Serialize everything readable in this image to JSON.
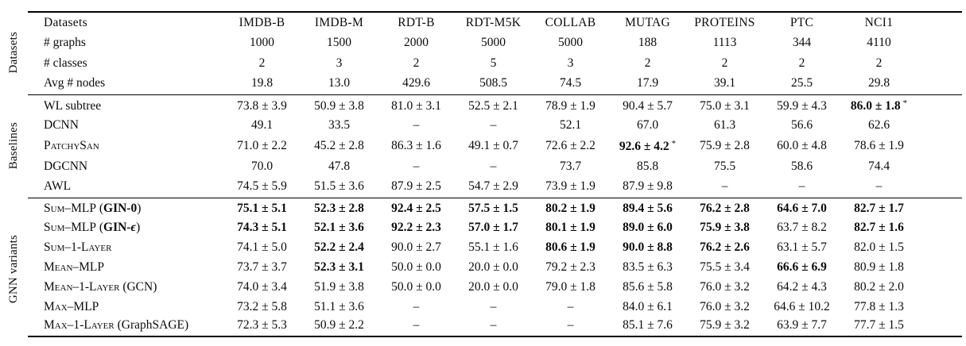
{
  "table": {
    "columns": [
      "Datasets",
      "IMDB-B",
      "IMDB-M",
      "RDT-B",
      "RDT-M5K",
      "COLLAB",
      "MUTAG",
      "PROTEINS",
      "PTC",
      "NCI1"
    ],
    "sections": [
      {
        "group_label": "Datasets",
        "rows": [
          {
            "label": [
              {
                "t": "# graphs"
              }
            ],
            "cells": [
              "1000",
              "1500",
              "2000",
              "5000",
              "5000",
              "188",
              "1113",
              "344",
              "4110"
            ]
          },
          {
            "label": [
              {
                "t": "# classes"
              }
            ],
            "cells": [
              "2",
              "3",
              "2",
              "5",
              "3",
              "2",
              "2",
              "2",
              "2"
            ]
          },
          {
            "label": [
              {
                "t": "Avg # nodes"
              }
            ],
            "cells": [
              "19.8",
              "13.0",
              "429.6",
              "508.5",
              "74.5",
              "17.9",
              "39.1",
              "25.5",
              "29.8"
            ]
          }
        ]
      },
      {
        "group_label": "Baselines",
        "rows": [
          {
            "label": [
              {
                "t": "WL subtree"
              }
            ],
            "cells": [
              "73.8 ± 3.9",
              "50.9 ± 3.8",
              "81.0 ± 3.1",
              "52.5 ± 2.1",
              "78.9 ± 1.9",
              "90.4 ± 5.7",
              "75.0 ± 3.1",
              "59.9 ± 4.3",
              {
                "t": "86.0 ± 1.8",
                "b": true,
                "star": "*"
              }
            ]
          },
          {
            "label": [
              {
                "t": "DCNN"
              }
            ],
            "cells": [
              "49.1",
              "33.5",
              "–",
              "–",
              "52.1",
              "67.0",
              "61.3",
              "56.6",
              "62.6"
            ]
          },
          {
            "label": [
              {
                "t": "PatchySan",
                "sc": true
              }
            ],
            "cells": [
              "71.0 ± 2.2",
              "45.2 ± 2.8",
              "86.3 ± 1.6",
              "49.1 ± 0.7",
              "72.6 ± 2.2",
              {
                "t": "92.6 ± 4.2",
                "b": true,
                "star": "*"
              },
              "75.9 ± 2.8",
              "60.0 ± 4.8",
              "78.6 ± 1.9"
            ]
          },
          {
            "label": [
              {
                "t": "DGCNN"
              }
            ],
            "cells": [
              "70.0",
              "47.8",
              "–",
              "–",
              "73.7",
              "85.8",
              "75.5",
              "58.6",
              "74.4"
            ]
          },
          {
            "label": [
              {
                "t": "AWL"
              }
            ],
            "cells": [
              "74.5 ± 5.9",
              "51.5 ± 3.6",
              "87.9 ± 2.5",
              "54.7 ± 2.9",
              "73.9 ± 1.9",
              "87.9 ± 9.8",
              "–",
              "–",
              "–"
            ]
          }
        ]
      },
      {
        "group_label": "GNN variants",
        "rows": [
          {
            "label": [
              {
                "t": "Sum–MLP",
                "sc": true
              },
              {
                "t": " ("
              },
              {
                "t": "GIN-0",
                "b": true
              },
              {
                "t": ")"
              }
            ],
            "cells": [
              {
                "t": "75.1 ± 5.1",
                "b": true
              },
              {
                "t": "52.3 ± 2.8",
                "b": true
              },
              {
                "t": "92.4 ± 2.5",
                "b": true
              },
              {
                "t": "57.5 ± 1.5",
                "b": true
              },
              {
                "t": "80.2 ± 1.9",
                "b": true
              },
              {
                "t": "89.4 ± 5.6",
                "b": true
              },
              {
                "t": "76.2 ± 2.8",
                "b": true
              },
              {
                "t": "64.6 ± 7.0",
                "b": true
              },
              {
                "t": "82.7 ± 1.7",
                "b": true
              }
            ]
          },
          {
            "label": [
              {
                "t": "Sum–MLP",
                "sc": true
              },
              {
                "t": " ("
              },
              {
                "t": "GIN-",
                "b": true
              },
              {
                "t": "ϵ",
                "b": true,
                "i": true
              },
              {
                "t": ")"
              }
            ],
            "cells": [
              {
                "t": "74.3 ± 5.1",
                "b": true
              },
              {
                "t": "52.1 ± 3.6",
                "b": true
              },
              {
                "t": "92.2 ± 2.3",
                "b": true
              },
              {
                "t": "57.0 ± 1.7",
                "b": true
              },
              {
                "t": "80.1 ± 1.9",
                "b": true
              },
              {
                "t": "89.0 ± 6.0",
                "b": true
              },
              {
                "t": "75.9 ± 3.8",
                "b": true
              },
              "63.7 ± 8.2",
              {
                "t": "82.7 ± 1.6",
                "b": true
              }
            ]
          },
          {
            "label": [
              {
                "t": "Sum–1-Layer",
                "sc": true
              }
            ],
            "cells": [
              "74.1 ± 5.0",
              {
                "t": "52.2 ± 2.4",
                "b": true
              },
              "90.0 ± 2.7",
              "55.1 ± 1.6",
              {
                "t": "80.6 ± 1.9",
                "b": true
              },
              {
                "t": "90.0 ± 8.8",
                "b": true
              },
              {
                "t": "76.2 ± 2.6",
                "b": true
              },
              "63.1 ± 5.7",
              "82.0 ± 1.5"
            ]
          },
          {
            "label": [
              {
                "t": "Mean–MLP",
                "sc": true
              }
            ],
            "cells": [
              "73.7 ± 3.7",
              {
                "t": "52.3 ± 3.1",
                "b": true
              },
              "50.0 ± 0.0",
              "20.0 ± 0.0",
              "79.2 ± 2.3",
              "83.5 ± 6.3",
              "75.5 ± 3.4",
              {
                "t": "66.6 ± 6.9",
                "b": true
              },
              "80.9 ± 1.8"
            ]
          },
          {
            "label": [
              {
                "t": "Mean–1-Layer",
                "sc": true
              },
              {
                "t": " (GCN)"
              }
            ],
            "cells": [
              "74.0 ± 3.4",
              "51.9 ± 3.8",
              "50.0 ± 0.0",
              "20.0 ± 0.0",
              "79.0 ± 1.8",
              "85.6 ± 5.8",
              "76.0 ± 3.2",
              "64.2 ± 4.3",
              "80.2 ± 2.0"
            ]
          },
          {
            "label": [
              {
                "t": "Max–MLP",
                "sc": true
              }
            ],
            "cells": [
              "73.2 ± 5.8",
              "51.1 ± 3.6",
              "–",
              "–",
              "–",
              "84.0 ± 6.1",
              "76.0 ± 3.2",
              "64.6 ± 10.2",
              "77.8 ± 1.3"
            ]
          },
          {
            "label": [
              {
                "t": "Max–1-Layer",
                "sc": true
              },
              {
                "t": " (GraphSAGE)"
              }
            ],
            "cells": [
              "72.3 ± 5.3",
              "50.9 ± 2.2",
              "–",
              "–",
              "–",
              "85.1 ± 7.6",
              "75.9 ± 3.2",
              "63.9 ± 7.7",
              "77.7 ± 1.5"
            ]
          }
        ]
      }
    ]
  }
}
